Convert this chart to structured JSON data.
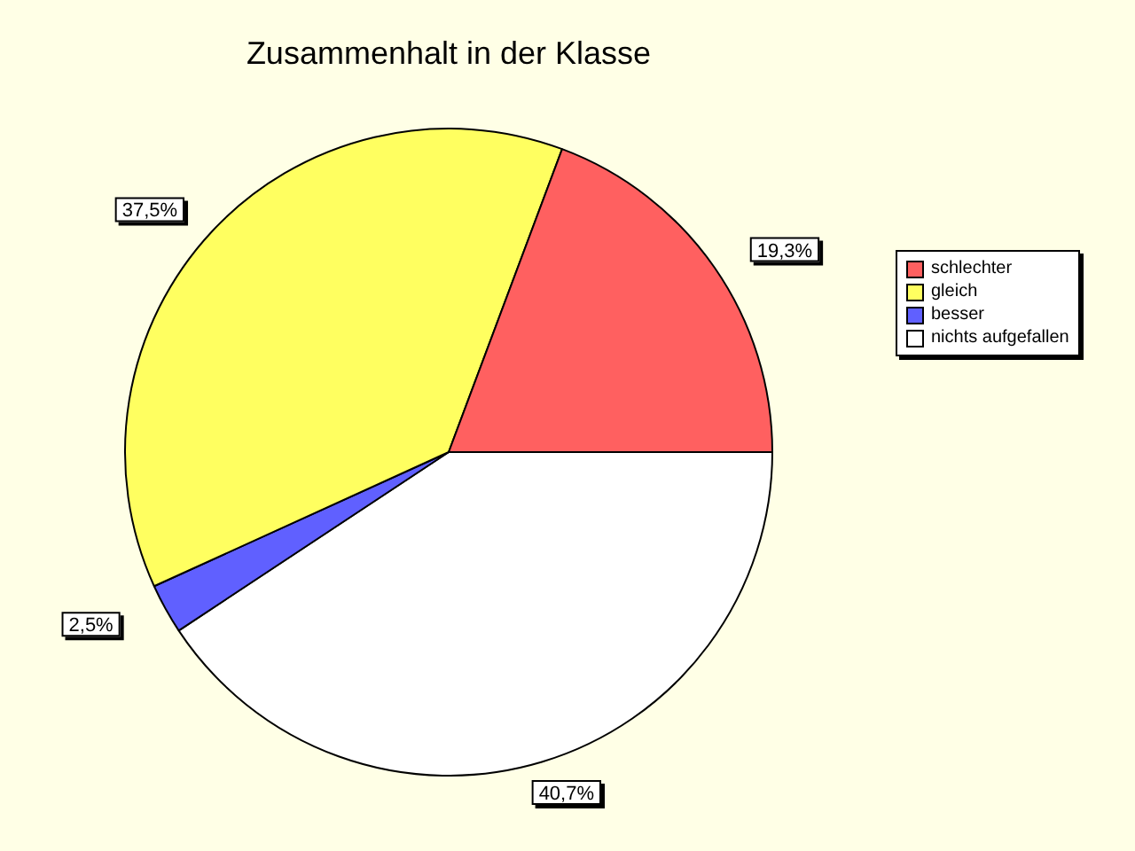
{
  "chart_data": {
    "type": "pie",
    "title": "Zusammenhalt in der Klasse",
    "categories": [
      "schlechter",
      "gleich",
      "besser",
      "nichts aufgefallen"
    ],
    "values": [
      19.3,
      37.5,
      2.5,
      40.7
    ],
    "colors": [
      "#ff6060",
      "#ffff60",
      "#6060ff",
      "#ffffff"
    ],
    "value_labels": [
      "19,3%",
      "37,5%",
      "2,5%",
      "40,7%"
    ],
    "legend": "right"
  }
}
